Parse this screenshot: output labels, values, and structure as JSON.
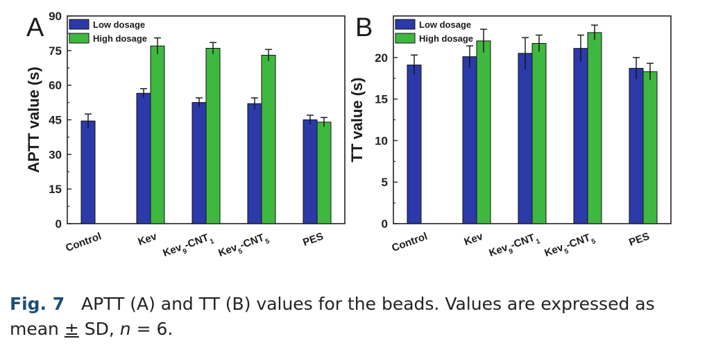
{
  "chart_data": [
    {
      "panel_letter": "A",
      "type": "bar",
      "ylabel": "APTT value (s)",
      "ylim": [
        0,
        90
      ],
      "yticks": [
        0,
        15,
        30,
        45,
        60,
        75,
        90
      ],
      "categories": [
        {
          "main": "Control",
          "sub1": "",
          "mid": "",
          "sub2": ""
        },
        {
          "main": "Kev",
          "sub1": "",
          "mid": "",
          "sub2": ""
        },
        {
          "main": "Kev",
          "sub1": "9",
          "mid": "-CNT",
          "sub2": "1"
        },
        {
          "main": "Kev",
          "sub1": "5",
          "mid": "-CNT",
          "sub2": "5"
        },
        {
          "main": "PES",
          "sub1": "",
          "mid": "",
          "sub2": ""
        }
      ],
      "series": [
        {
          "name": "Low dosage",
          "color": "#2b3aa8",
          "values": [
            44.5,
            56.5,
            52.5,
            52.0,
            45.0
          ],
          "errors": [
            3.0,
            2.0,
            2.0,
            2.5,
            2.0
          ]
        },
        {
          "name": "High dosage",
          "color": "#3fb83f",
          "values": [
            null,
            77.0,
            76.0,
            73.0,
            44.0
          ],
          "errors": [
            null,
            3.5,
            2.5,
            2.5,
            2.0
          ]
        }
      ],
      "legend_position": "top-left",
      "grid": false
    },
    {
      "panel_letter": "B",
      "type": "bar",
      "ylabel": "TT value (s)",
      "ylim": [
        0,
        25
      ],
      "yticks": [
        0,
        5,
        10,
        15,
        20
      ],
      "categories": [
        {
          "main": "Control",
          "sub1": "",
          "mid": "",
          "sub2": ""
        },
        {
          "main": "Kev",
          "sub1": "",
          "mid": "",
          "sub2": ""
        },
        {
          "main": "Kev",
          "sub1": "9",
          "mid": "-CNT",
          "sub2": "1"
        },
        {
          "main": "Kev",
          "sub1": "5",
          "mid": "-CNT",
          "sub2": "5"
        },
        {
          "main": "PES",
          "sub1": "",
          "mid": "",
          "sub2": ""
        }
      ],
      "series": [
        {
          "name": "Low dosage",
          "color": "#2b3aa8",
          "values": [
            19.1,
            20.1,
            20.5,
            21.1,
            18.7
          ],
          "errors": [
            1.2,
            1.3,
            1.9,
            1.6,
            1.3
          ]
        },
        {
          "name": "High dosage",
          "color": "#3fb83f",
          "values": [
            null,
            22.0,
            21.7,
            23.0,
            18.3
          ],
          "errors": [
            null,
            1.4,
            1.0,
            0.9,
            1.0
          ]
        }
      ],
      "legend_position": "top-left",
      "grid": false
    }
  ],
  "caption": {
    "label": "Fig. 7",
    "text_line1": "APTT (A) and TT (B) values for the beads. Values are expressed as",
    "text_line2a": "mean ",
    "pm": "±",
    "text_line2b": " SD, ",
    "n_symbol": "n",
    "text_line2c": " = 6."
  }
}
